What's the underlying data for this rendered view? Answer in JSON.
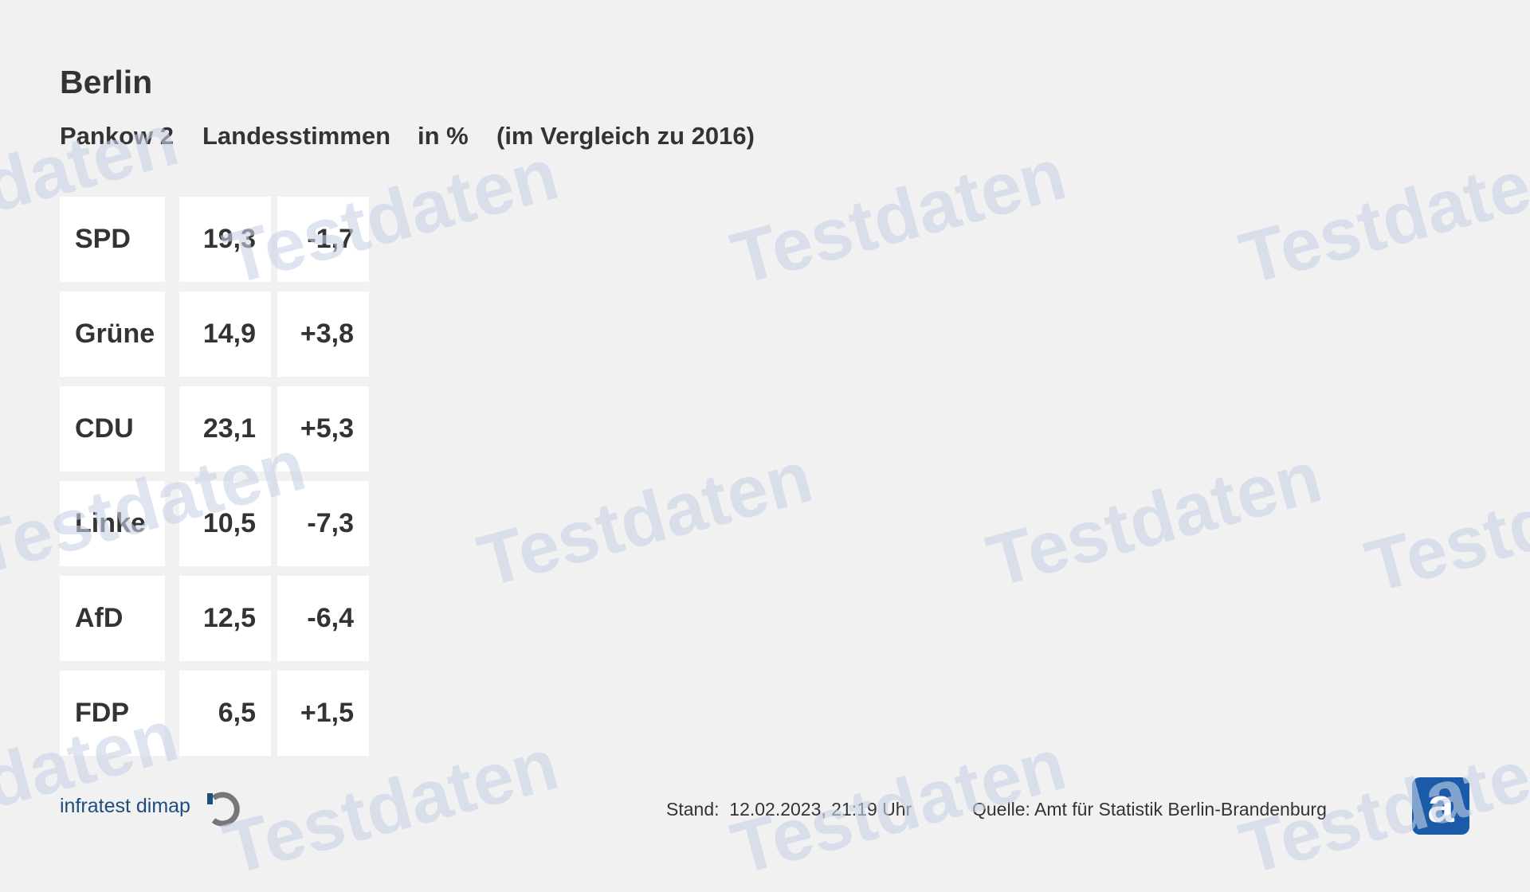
{
  "header": {
    "title": "Berlin",
    "subtitle": [
      "Pankow 2",
      "Landesstimmen",
      "in %",
      "(im Vergleich zu 2016)"
    ]
  },
  "table": {
    "rows": [
      [
        "SPD",
        "19,3",
        "-1,7"
      ],
      [
        "Grüne",
        "14,9",
        "+3,8"
      ],
      [
        "CDU",
        "23,1",
        "+5,3"
      ],
      [
        "Linke",
        "10,5",
        "-7,3"
      ],
      [
        "AfD",
        "12,5",
        "-6,4"
      ],
      [
        "FDP",
        "6,5",
        "+1,5"
      ]
    ]
  },
  "footer": {
    "brand": "infratest dimap",
    "stand_label": "Stand:",
    "stand": "12.02.2023, 21:19 Uhr",
    "source": "Quelle: Amt für Statistik Berlin-Brandenburg"
  },
  "watermark": "Testdaten"
}
